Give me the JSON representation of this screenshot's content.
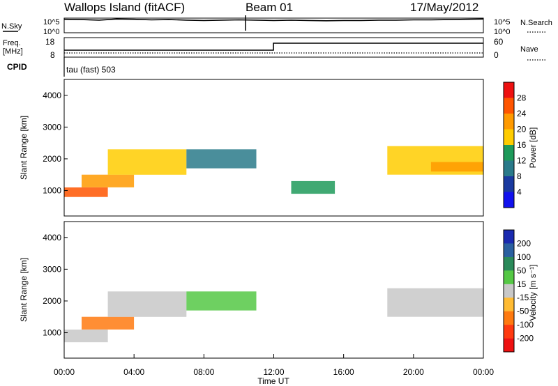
{
  "header": {
    "station": "Wallops Island (fitACF)",
    "beam": "Beam 01",
    "date": "17/May/2012"
  },
  "strips": {
    "nsky_label": "N.Sky",
    "nsky_ticks": [
      "10^5",
      "10^0"
    ],
    "nsearch_label": "N.Search",
    "nsearch_ticks": [
      "10^5",
      "10^0"
    ],
    "freq_label": "Freq.",
    "freq_unit": "[MHz]",
    "freq_ticks": [
      "18",
      "8"
    ],
    "nave_label": "Nave",
    "nave_ticks": [
      "60",
      "0"
    ],
    "cpid_label": "CPID",
    "cpid_value": "tau (fast) 503"
  },
  "axes": {
    "ylabel": "Slant Range [km]",
    "xlabel": "Time UT",
    "x_ticks": [
      "00:00",
      "04:00",
      "08:00",
      "12:00",
      "16:00",
      "20:00",
      "00:00"
    ],
    "y_ticks": [
      "1000",
      "2000",
      "3000",
      "4000"
    ]
  },
  "colorbars": {
    "power": {
      "label": "Power [dB]",
      "ticks": [
        "28",
        "24",
        "20",
        "16",
        "12",
        "8",
        "4"
      ],
      "colors": [
        "#ee1111",
        "#ff5500",
        "#ff9a00",
        "#ffcc00",
        "#1e9a5a",
        "#2a7a8a",
        "#1a3aa0",
        "#1111ee"
      ]
    },
    "velocity": {
      "label": "Velocity [m s⁻¹]",
      "ticks": [
        "200",
        "100",
        "50",
        "15",
        "-15",
        "-50",
        "-100",
        "-200"
      ],
      "colors": [
        "#1a2ab0",
        "#2a60a0",
        "#2a8a5a",
        "#55c845",
        "#c8c8c8",
        "#ffbb33",
        "#ff7a10",
        "#ff3a10",
        "#ee1111"
      ]
    }
  },
  "chart_data": [
    {
      "type": "line",
      "title": "N.Sky / N.Search",
      "x_range_hours": [
        0,
        24
      ],
      "series": [
        {
          "name": "N.Sky",
          "values_log10": [
            4.6,
            4.5,
            4.3,
            4.7,
            4.6,
            4.4,
            4.5,
            4.3,
            4.2,
            4.3,
            4.4,
            4.3,
            4.2,
            4.3,
            4.2,
            4.1,
            4.2,
            4.2,
            4.3,
            4.3,
            4.4,
            4.4,
            4.5,
            4.6,
            4.7
          ]
        }
      ],
      "ylim": [
        0,
        5
      ]
    },
    {
      "type": "line",
      "title": "Freq. / Nave",
      "series": [
        {
          "name": "Freq.",
          "x": [
            0,
            12,
            12,
            24
          ],
          "values": [
            10,
            10,
            15.5,
            15.5
          ]
        }
      ],
      "ylim": [
        8,
        18
      ]
    },
    {
      "type": "heatmap",
      "title": "Power",
      "xlabel": "Time UT",
      "ylabel": "Slant Range [km]",
      "xlim_hours": [
        0,
        24
      ],
      "ylim_km": [
        200,
        4500
      ],
      "colorbar_label": "Power [dB]",
      "colorbar_range": [
        0,
        30
      ],
      "echo_bands": [
        {
          "t_start": 0.0,
          "t_end": 2.5,
          "range_start_km": 800,
          "range_end_km": 1100,
          "power_db": 26
        },
        {
          "t_start": 1.0,
          "t_end": 4.0,
          "range_start_km": 1100,
          "range_end_km": 1500,
          "power_db": 22
        },
        {
          "t_start": 2.5,
          "t_end": 7.0,
          "range_start_km": 1500,
          "range_end_km": 2300,
          "power_db": 18
        },
        {
          "t_start": 7.0,
          "t_end": 11.0,
          "range_start_km": 1700,
          "range_end_km": 2300,
          "power_db": 10
        },
        {
          "t_start": 13.0,
          "t_end": 15.5,
          "range_start_km": 900,
          "range_end_km": 1300,
          "power_db": 14
        },
        {
          "t_start": 18.5,
          "t_end": 24.0,
          "range_start_km": 1500,
          "range_end_km": 2400,
          "power_db": 16
        },
        {
          "t_start": 21.0,
          "t_end": 24.0,
          "range_start_km": 1600,
          "range_end_km": 1900,
          "power_db": 22
        }
      ]
    },
    {
      "type": "heatmap",
      "title": "Velocity",
      "xlabel": "Time UT",
      "ylabel": "Slant Range [km]",
      "xlim_hours": [
        0,
        24
      ],
      "ylim_km": [
        200,
        4500
      ],
      "colorbar_label": "Velocity [m s-1]",
      "colorbar_range": [
        -250,
        250
      ],
      "echo_bands": [
        {
          "t_start": 0.0,
          "t_end": 2.5,
          "range_start_km": 700,
          "range_end_km": 1100,
          "velocity": 0
        },
        {
          "t_start": 1.0,
          "t_end": 4.0,
          "range_start_km": 1100,
          "range_end_km": 1500,
          "velocity": -60
        },
        {
          "t_start": 2.5,
          "t_end": 7.0,
          "range_start_km": 1500,
          "range_end_km": 2300,
          "velocity": 0
        },
        {
          "t_start": 7.0,
          "t_end": 11.0,
          "range_start_km": 1700,
          "range_end_km": 2300,
          "velocity": 20
        },
        {
          "t_start": 18.5,
          "t_end": 24.0,
          "range_start_km": 1500,
          "range_end_km": 2400,
          "velocity": 0
        }
      ]
    }
  ]
}
